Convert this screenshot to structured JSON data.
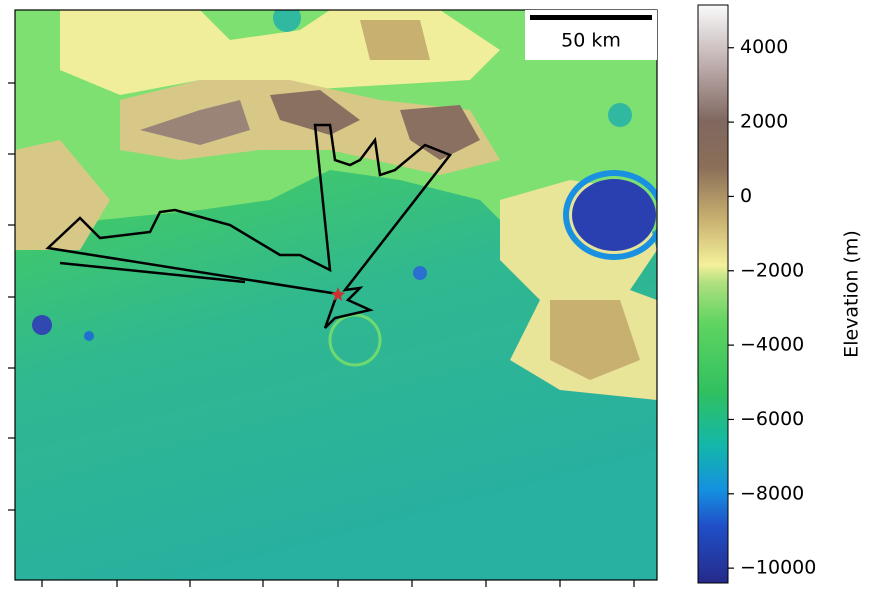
{
  "map": {
    "scale_bar": {
      "label": "50 km"
    },
    "colorbar": {
      "label": "Elevation (m)",
      "lim": [
        -10400,
        5150
      ],
      "ticks": [
        {
          "value": 4000,
          "label": "4000"
        },
        {
          "value": 2000,
          "label": "2000"
        },
        {
          "value": 0,
          "label": "0"
        },
        {
          "value": -2000,
          "label": "−2000"
        },
        {
          "value": -4000,
          "label": "−4000"
        },
        {
          "value": -6000,
          "label": "−6000"
        },
        {
          "value": -8000,
          "label": "−8000"
        },
        {
          "value": -10000,
          "label": "−10000"
        }
      ]
    }
  }
}
